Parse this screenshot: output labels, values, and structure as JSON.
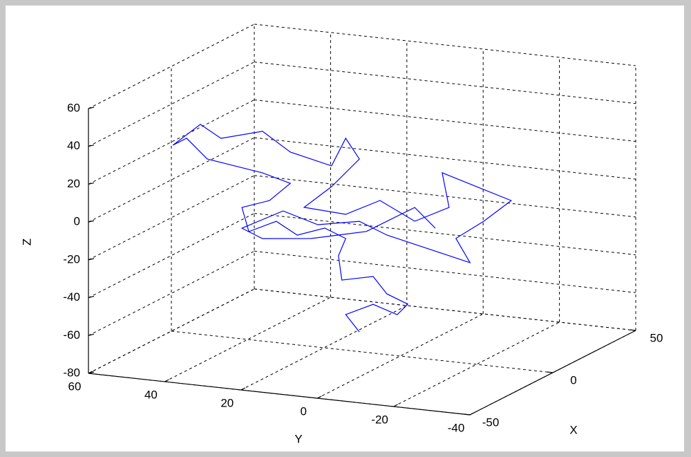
{
  "chart_data": {
    "type": "line3d",
    "xlabel": "X",
    "ylabel": "Y",
    "zlabel": "Z",
    "xlim": [
      -50,
      50
    ],
    "ylim": [
      -40,
      60
    ],
    "zlim": [
      -80,
      60
    ],
    "xticks": [
      -50,
      0,
      50
    ],
    "yticks": [
      -40,
      -20,
      0,
      20,
      40,
      60
    ],
    "zticks": [
      -80,
      -60,
      -40,
      -20,
      0,
      20,
      40,
      60
    ],
    "grid": true,
    "series": [
      {
        "color": "#0000ff",
        "x": [
          0,
          0,
          0,
          0,
          0,
          0,
          0,
          0,
          0,
          0,
          0,
          0,
          0,
          0,
          0,
          0,
          0,
          0,
          0,
          0,
          0,
          0,
          0,
          0,
          0,
          0,
          0,
          0,
          0,
          0,
          0,
          0,
          0,
          0,
          0,
          0,
          0,
          0,
          0,
          0,
          0,
          0,
          0,
          0,
          0,
          0,
          0,
          0,
          0,
          0,
          0,
          0
        ],
        "y": [
          10.7,
          14.3,
          7.1,
          0.8,
          -2.0,
          3.5,
          7.1,
          15.3,
          16.2,
          14.3,
          19.8,
          27.0,
          32.5,
          39.7,
          41.5,
          34.3,
          28.8,
          36.1,
          43.3,
          50.6,
          56.0,
          59.6,
          52.4,
          47.0,
          36.1,
          28.8,
          18.0,
          14.3,
          10.7,
          18.0,
          25.2,
          14.3,
          5.3,
          -3.8,
          -12.8,
          -11.0,
          -20.1,
          -29.1,
          -21.9,
          -14.6,
          -18.3,
          -7.4,
          3.5,
          10.7,
          21.6,
          30.7,
          41.5,
          36.1,
          23.4,
          8.9,
          -3.8,
          -9.2
        ],
        "z": [
          -69.6,
          -61.2,
          -54.2,
          -58.3,
          -52.1,
          -47.9,
          -39.5,
          -43.2,
          -30.5,
          -21.0,
          -16.7,
          -22.0,
          -15.9,
          -22.9,
          -10.5,
          -5.3,
          5.0,
          8.9,
          11.0,
          13.1,
          22.9,
          18.4,
          31.0,
          24.8,
          30.9,
          21.5,
          16.6,
          32.0,
          21.8,
          5.6,
          -6.9,
          -8.2,
          1.1,
          -7.9,
          1.4,
          19.3,
          13.9,
          8.6,
          -3.9,
          -14.6,
          -26.6,
          -21.7,
          -16.8,
          -11.1,
          -15.3,
          -10.0,
          -21.5,
          -25.8,
          -23.0,
          -16.1,
          -0.6,
          -10.4
        ]
      }
    ]
  }
}
